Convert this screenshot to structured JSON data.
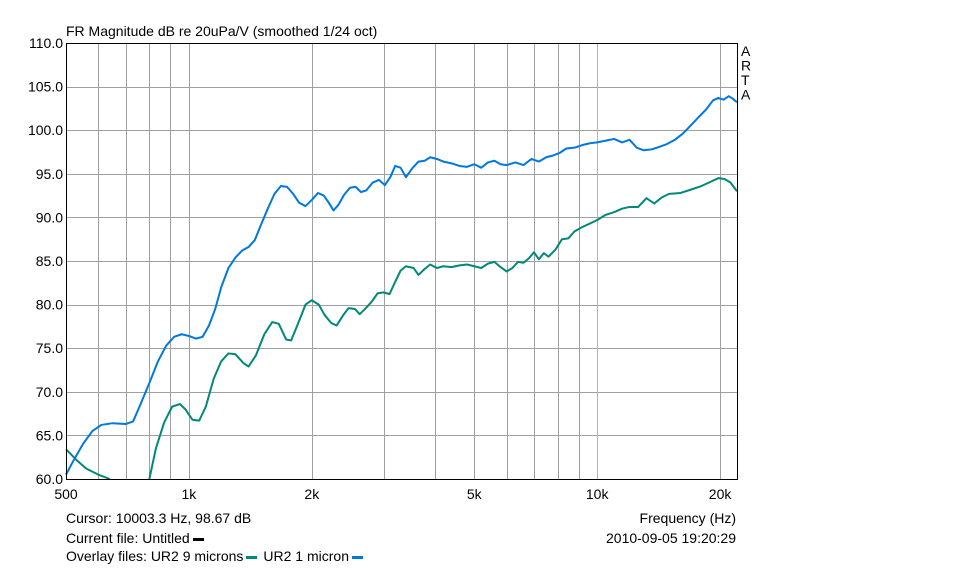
{
  "chart_data": {
    "type": "line",
    "title": "FR Magnitude dB re 20uPa/V (smoothed 1/24 oct)",
    "xlabel": "Frequency (Hz)",
    "x_scale": "log",
    "xlim": [
      500,
      22000
    ],
    "ylim": [
      60,
      110
    ],
    "grid": true,
    "x_ticks": [
      {
        "value": 500,
        "label": "500"
      },
      {
        "value": 1000,
        "label": "1k"
      },
      {
        "value": 2000,
        "label": "2k"
      },
      {
        "value": 5000,
        "label": "5k"
      },
      {
        "value": 10000,
        "label": "10k"
      },
      {
        "value": 20000,
        "label": "20k"
      }
    ],
    "y_ticks": [
      {
        "value": 110,
        "label": "110.0"
      },
      {
        "value": 105,
        "label": "105.0"
      },
      {
        "value": 100,
        "label": "100.0"
      },
      {
        "value": 95,
        "label": "95.0"
      },
      {
        "value": 90,
        "label": "90.0"
      },
      {
        "value": 85,
        "label": "85.0"
      },
      {
        "value": 80,
        "label": "80.0"
      },
      {
        "value": 75,
        "label": "75.0"
      },
      {
        "value": 70,
        "label": "70.0"
      },
      {
        "value": 65,
        "label": "65.0"
      },
      {
        "value": 60,
        "label": "60.0"
      }
    ],
    "cursor_x": 10003.3,
    "cursor_color": "#e0c000",
    "series": [
      {
        "name": "UR2 9 microns",
        "color": "#008878",
        "segments": [
          [
            [
              500,
              63.4
            ],
            [
              530,
              62.2
            ],
            [
              560,
              61.2
            ],
            [
              600,
              60.5
            ],
            [
              640,
              60.0
            ]
          ],
          [
            [
              800,
              60.0
            ],
            [
              830,
              63.5
            ],
            [
              870,
              66.5
            ],
            [
              910,
              68.3
            ],
            [
              950,
              68.6
            ],
            [
              980,
              68.0
            ],
            [
              1020,
              66.8
            ],
            [
              1060,
              66.7
            ],
            [
              1100,
              68.3
            ],
            [
              1150,
              71.5
            ],
            [
              1200,
              73.5
            ],
            [
              1250,
              74.4
            ],
            [
              1300,
              74.3
            ],
            [
              1360,
              73.3
            ],
            [
              1400,
              72.9
            ],
            [
              1460,
              74.2
            ],
            [
              1530,
              76.6
            ],
            [
              1600,
              78.0
            ],
            [
              1660,
              77.8
            ],
            [
              1730,
              76.0
            ],
            [
              1780,
              75.9
            ],
            [
              1850,
              77.8
            ],
            [
              1930,
              80.0
            ],
            [
              2000,
              80.5
            ],
            [
              2080,
              80.0
            ],
            [
              2150,
              78.8
            ],
            [
              2230,
              77.9
            ],
            [
              2300,
              77.6
            ],
            [
              2380,
              78.7
            ],
            [
              2460,
              79.6
            ],
            [
              2550,
              79.5
            ],
            [
              2620,
              78.9
            ],
            [
              2700,
              79.5
            ],
            [
              2800,
              80.3
            ],
            [
              2900,
              81.3
            ],
            [
              3000,
              81.4
            ],
            [
              3100,
              81.2
            ],
            [
              3200,
              82.6
            ],
            [
              3300,
              83.9
            ],
            [
              3400,
              84.4
            ],
            [
              3550,
              84.2
            ],
            [
              3650,
              83.4
            ],
            [
              3780,
              84.1
            ],
            [
              3900,
              84.6
            ],
            [
              4050,
              84.2
            ],
            [
              4200,
              84.4
            ],
            [
              4400,
              84.3
            ],
            [
              4600,
              84.5
            ],
            [
              4800,
              84.6
            ],
            [
              5000,
              84.4
            ],
            [
              5200,
              84.2
            ],
            [
              5400,
              84.7
            ],
            [
              5600,
              84.9
            ],
            [
              5800,
              84.3
            ],
            [
              6000,
              83.8
            ],
            [
              6200,
              84.2
            ],
            [
              6400,
              84.9
            ],
            [
              6600,
              84.8
            ],
            [
              6800,
              85.3
            ],
            [
              7000,
              86.0
            ],
            [
              7200,
              85.2
            ],
            [
              7400,
              85.9
            ],
            [
              7600,
              85.5
            ],
            [
              7900,
              86.3
            ],
            [
              8200,
              87.5
            ],
            [
              8500,
              87.6
            ],
            [
              8800,
              88.4
            ],
            [
              9200,
              88.9
            ],
            [
              9600,
              89.3
            ],
            [
              10000,
              89.7
            ],
            [
              10500,
              90.3
            ],
            [
              11000,
              90.6
            ],
            [
              11500,
              91.0
            ],
            [
              12000,
              91.2
            ],
            [
              12600,
              91.2
            ],
            [
              13200,
              92.2
            ],
            [
              13800,
              91.6
            ],
            [
              14400,
              92.3
            ],
            [
              15000,
              92.7
            ],
            [
              16000,
              92.8
            ],
            [
              17000,
              93.2
            ],
            [
              18000,
              93.6
            ],
            [
              19000,
              94.1
            ],
            [
              19800,
              94.5
            ],
            [
              20500,
              94.4
            ],
            [
              21200,
              94.0
            ],
            [
              22000,
              93.0
            ]
          ]
        ]
      },
      {
        "name": "UR2 1 micron",
        "color": "#0078e0",
        "segments": [
          [
            [
              500,
              60.5
            ],
            [
              520,
              62.0
            ],
            [
              550,
              64.0
            ],
            [
              580,
              65.5
            ],
            [
              610,
              66.2
            ],
            [
              650,
              66.4
            ],
            [
              700,
              66.3
            ],
            [
              730,
              66.6
            ],
            [
              760,
              68.5
            ],
            [
              800,
              71.0
            ],
            [
              840,
              73.5
            ],
            [
              880,
              75.3
            ],
            [
              920,
              76.3
            ],
            [
              960,
              76.6
            ],
            [
              1000,
              76.4
            ],
            [
              1040,
              76.1
            ],
            [
              1080,
              76.3
            ],
            [
              1120,
              77.6
            ],
            [
              1160,
              79.5
            ],
            [
              1200,
              82.0
            ],
            [
              1250,
              84.2
            ],
            [
              1300,
              85.4
            ],
            [
              1350,
              86.2
            ],
            [
              1400,
              86.6
            ],
            [
              1450,
              87.4
            ],
            [
              1500,
              89.1
            ],
            [
              1560,
              91.0
            ],
            [
              1620,
              92.7
            ],
            [
              1680,
              93.6
            ],
            [
              1740,
              93.5
            ],
            [
              1800,
              92.7
            ],
            [
              1860,
              91.7
            ],
            [
              1930,
              91.3
            ],
            [
              2000,
              92.0
            ],
            [
              2070,
              92.8
            ],
            [
              2140,
              92.5
            ],
            [
              2200,
              91.7
            ],
            [
              2260,
              90.8
            ],
            [
              2320,
              91.4
            ],
            [
              2400,
              92.6
            ],
            [
              2480,
              93.4
            ],
            [
              2560,
              93.5
            ],
            [
              2640,
              92.9
            ],
            [
              2720,
              93.1
            ],
            [
              2820,
              94.0
            ],
            [
              2920,
              94.3
            ],
            [
              3020,
              93.7
            ],
            [
              3120,
              94.7
            ],
            [
              3200,
              95.9
            ],
            [
              3300,
              95.7
            ],
            [
              3400,
              94.6
            ],
            [
              3520,
              95.6
            ],
            [
              3650,
              96.4
            ],
            [
              3780,
              96.5
            ],
            [
              3900,
              96.9
            ],
            [
              4050,
              96.7
            ],
            [
              4200,
              96.4
            ],
            [
              4400,
              96.2
            ],
            [
              4600,
              95.9
            ],
            [
              4800,
              95.8
            ],
            [
              5000,
              96.1
            ],
            [
              5200,
              95.7
            ],
            [
              5400,
              96.3
            ],
            [
              5600,
              96.5
            ],
            [
              5800,
              96.1
            ],
            [
              6000,
              96.0
            ],
            [
              6300,
              96.3
            ],
            [
              6600,
              96.0
            ],
            [
              6900,
              96.7
            ],
            [
              7200,
              96.4
            ],
            [
              7500,
              96.9
            ],
            [
              7800,
              97.1
            ],
            [
              8100,
              97.4
            ],
            [
              8400,
              97.9
            ],
            [
              8800,
              98.0
            ],
            [
              9200,
              98.3
            ],
            [
              9600,
              98.5
            ],
            [
              10000,
              98.6
            ],
            [
              10500,
              98.8
            ],
            [
              11000,
              99.0
            ],
            [
              11500,
              98.6
            ],
            [
              12000,
              98.9
            ],
            [
              12500,
              98.0
            ],
            [
              13000,
              97.7
            ],
            [
              13600,
              97.8
            ],
            [
              14200,
              98.1
            ],
            [
              14800,
              98.4
            ],
            [
              15500,
              98.9
            ],
            [
              16200,
              99.6
            ],
            [
              17000,
              100.6
            ],
            [
              17800,
              101.6
            ],
            [
              18500,
              102.4
            ],
            [
              19200,
              103.4
            ],
            [
              19800,
              103.7
            ],
            [
              20400,
              103.5
            ],
            [
              21000,
              103.9
            ],
            [
              21500,
              103.6
            ],
            [
              22000,
              103.2
            ]
          ]
        ]
      }
    ]
  },
  "corner_label": [
    "A",
    "R",
    "T",
    "A"
  ],
  "footer": {
    "cursor_text": "Cursor: 10003.3 Hz, 98.67 dB",
    "freq_label": "Frequency (Hz)",
    "current_file_text": "Current file: Untitled",
    "current_file_color": "#000000",
    "overlay_label": "Overlay files:",
    "overlay_items": [
      {
        "name": "UR2 9 microns",
        "color": "#008878"
      },
      {
        "name": "UR2 1 micron",
        "color": "#0078e0"
      }
    ],
    "date_text": "2010-09-05  19:20:29"
  }
}
